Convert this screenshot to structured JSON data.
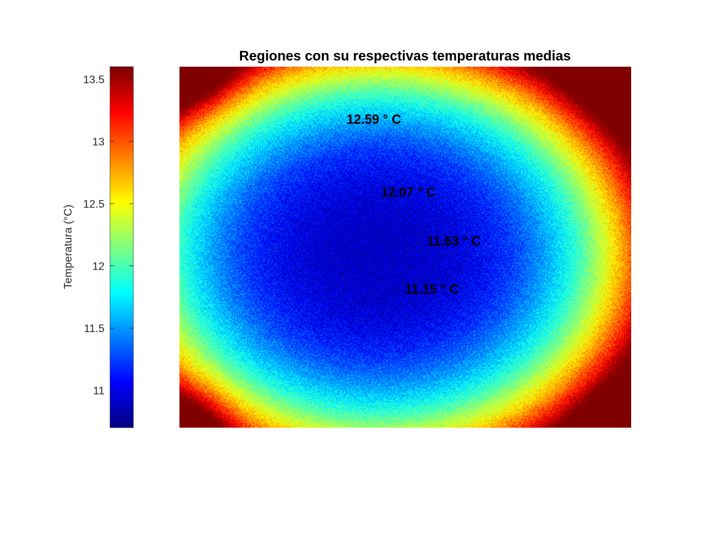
{
  "chart_data": {
    "type": "heatmap",
    "title": "Regiones con su respectivas temperaturas medias",
    "colorbar": {
      "label": "Temperatura (°C)",
      "range": [
        10.7,
        13.6
      ],
      "ticks": [
        11,
        11.5,
        12,
        12.5,
        13,
        13.5
      ],
      "tick_labels": [
        "11",
        "11.5",
        "12",
        "12.5",
        "13",
        "13.5"
      ],
      "colormap": "jet",
      "placement": "left"
    },
    "field": {
      "center_value": 10.9,
      "edge_value": 12.4,
      "corner_value": 13.3
    },
    "annotations": [
      {
        "text": "12.59 ° C",
        "value": 12.59
      },
      {
        "text": "12.07 ° C",
        "value": 12.07
      },
      {
        "text": "11.63 ° C",
        "value": 11.63
      },
      {
        "text": "11.15 ° C",
        "value": 11.15
      }
    ]
  }
}
